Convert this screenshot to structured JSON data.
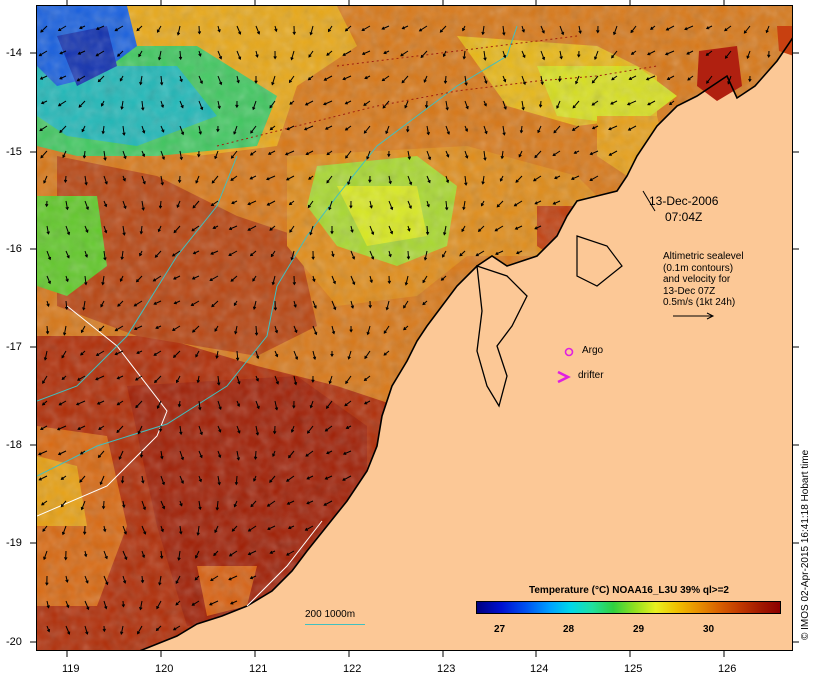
{
  "map": {
    "lat_labels": [
      "-14",
      "-15",
      "-16",
      "-17",
      "-18",
      "-19",
      "-20"
    ],
    "lon_labels": [
      "119",
      "120",
      "121",
      "122",
      "123",
      "124",
      "125",
      "126"
    ],
    "timestamp_date": "13-Dec-2006",
    "timestamp_time": "07:04Z",
    "sealevel_legend": [
      "Altimetric sealevel",
      "(0.1m contours)",
      "and velocity for",
      "13-Dec 07Z",
      "0.5m/s (1kt 24h)"
    ],
    "argo_label": "Argo",
    "drifter_label": "drifter",
    "isobath_label": "200  1000m",
    "colorbar_title": "Temperature (°C) NOAA16_L3U 39% ql>=2",
    "colorbar_ticks": [
      "27",
      "28",
      "29",
      "30"
    ],
    "credit": "© IMOS 02-Apr-2015 16:41:18 Hobart time",
    "colors": {
      "land": "#fcc896",
      "argo": "#e020e0",
      "drifter": "#e020e0",
      "isobath_200": "#ffffff",
      "isobath_1000": "#40c0c0"
    }
  }
}
